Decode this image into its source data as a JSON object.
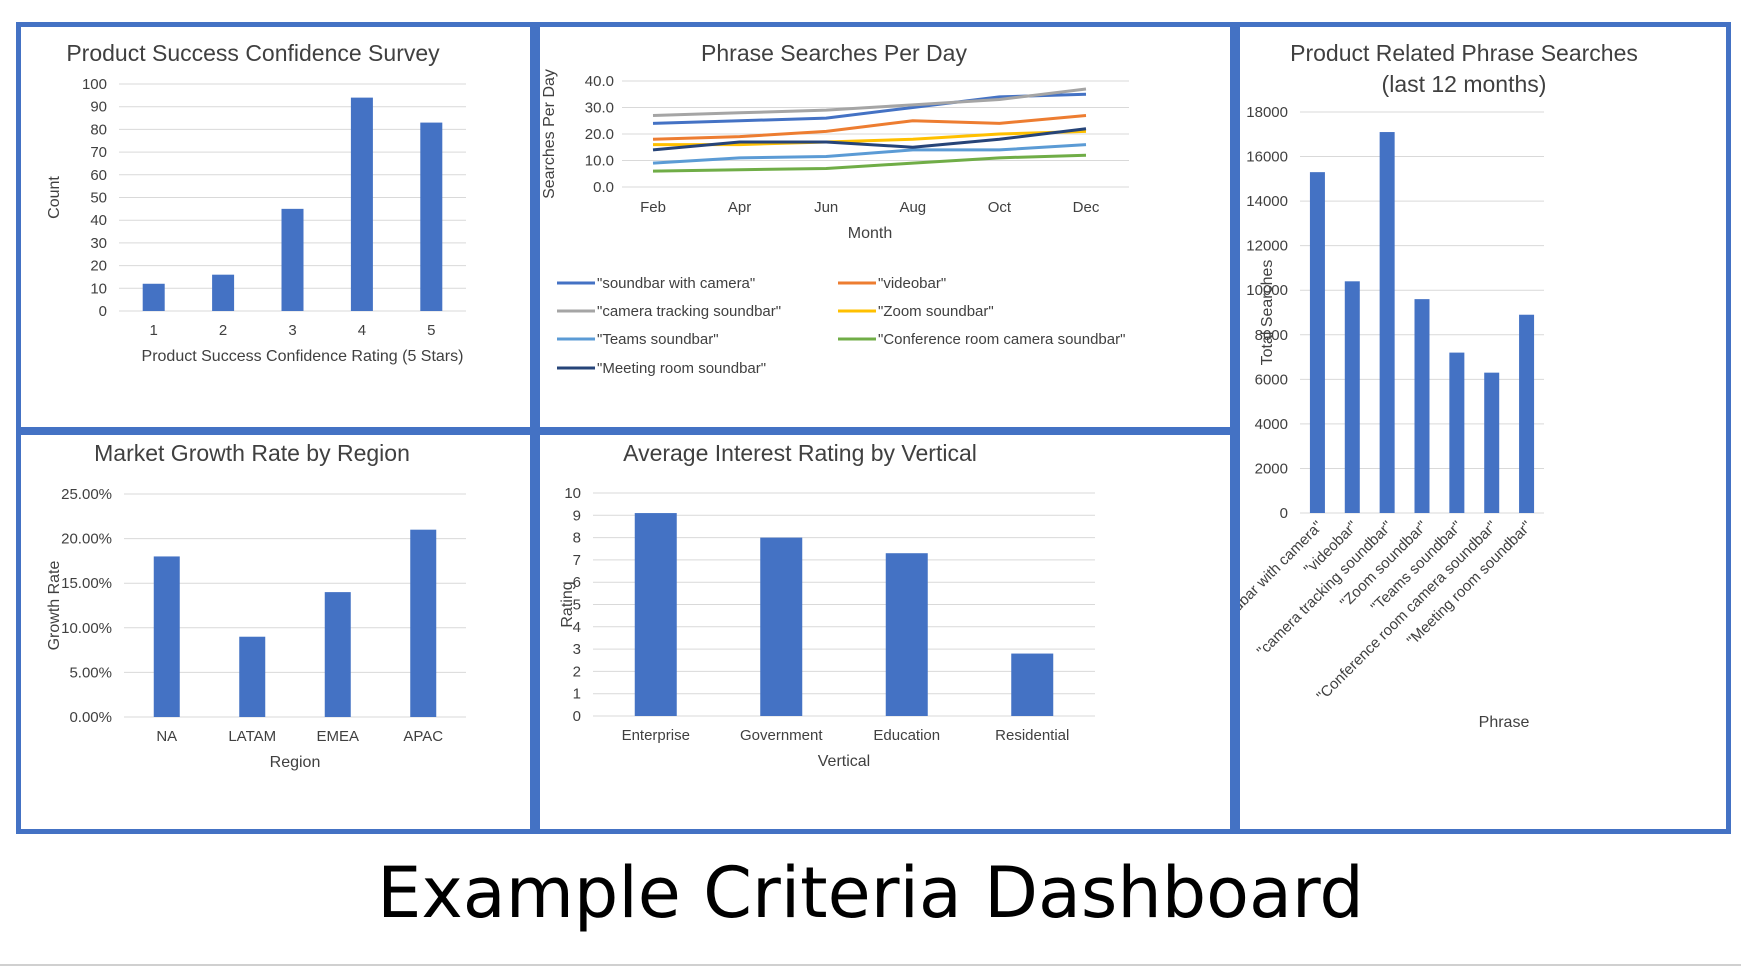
{
  "page": {
    "title": "Example Criteria Dashboard"
  },
  "chart_data": [
    {
      "id": "c1",
      "type": "bar",
      "title": "Product Success Confidence Survey",
      "categories": [
        "1",
        "2",
        "3",
        "4",
        "5"
      ],
      "values": [
        12,
        16,
        45,
        94,
        83
      ],
      "xlabel": "Product Success Confidence Rating (5 Stars)",
      "ylabel": "Count",
      "ylim": [
        0,
        100
      ],
      "yticks": [
        "0",
        "10",
        "20",
        "30",
        "40",
        "50",
        "60",
        "70",
        "80",
        "90",
        "100"
      ],
      "grid": true,
      "color": "#4472c4"
    },
    {
      "id": "c2",
      "type": "line",
      "title": "Phrase Searches Per Day",
      "x": [
        "Feb",
        "Apr",
        "Jun",
        "Aug",
        "Oct",
        "Dec"
      ],
      "xlabel": "Month",
      "ylabel": "Searches Per Day",
      "ylim": [
        0,
        40
      ],
      "yticks": [
        "0.0",
        "10.0",
        "20.0",
        "30.0",
        "40.0"
      ],
      "grid": true,
      "legend": "bottom",
      "series": [
        {
          "name": "\"soundbar with camera\"",
          "color": "#4472c4",
          "values": [
            24,
            25,
            26,
            30,
            34,
            35
          ]
        },
        {
          "name": "\"videobar\"",
          "color": "#ed7d31",
          "values": [
            18,
            19,
            21,
            25,
            24,
            27
          ]
        },
        {
          "name": "\"camera tracking soundbar\"",
          "color": "#a5a5a5",
          "values": [
            27,
            28,
            29,
            31,
            33,
            37
          ]
        },
        {
          "name": "\"Zoom soundbar\"",
          "color": "#ffc000",
          "values": [
            16,
            16,
            17,
            18,
            20,
            21
          ]
        },
        {
          "name": "\"Teams soundbar\"",
          "color": "#5b9bd5",
          "values": [
            9,
            11,
            11.5,
            14,
            14,
            16
          ]
        },
        {
          "name": "\"Conference room camera soundbar\"",
          "color": "#70ad47",
          "values": [
            6,
            6.5,
            7,
            9,
            11,
            12
          ]
        },
        {
          "name": "\"Meeting room soundbar\"",
          "color": "#264478",
          "values": [
            14,
            17,
            17,
            15,
            18,
            22
          ]
        }
      ]
    },
    {
      "id": "c3",
      "type": "bar",
      "title": "Product Related Phrase Searches",
      "subtitle": "(last 12 months)",
      "categories": [
        "\"soundbar with camera\"",
        "\"videobar\"",
        "\"camera tracking soundbar\"",
        "\"Zoom soundbar\"",
        "\"Teams soundbar\"",
        "\"Conference room camera soundbar\"",
        "\"Meeting room soundbar\""
      ],
      "values": [
        15300,
        10400,
        17100,
        9600,
        7200,
        6300,
        8900
      ],
      "xlabel": "Phrase",
      "ylabel": "Total Searches",
      "ylim": [
        0,
        18000
      ],
      "yticks": [
        "0",
        "2000",
        "4000",
        "6000",
        "8000",
        "10000",
        "12000",
        "14000",
        "16000",
        "18000"
      ],
      "grid": true,
      "color": "#4472c4"
    },
    {
      "id": "c4",
      "type": "bar",
      "title": "Market Growth Rate by Region",
      "categories": [
        "NA",
        "LATAM",
        "EMEA",
        "APAC"
      ],
      "values": [
        0.18,
        0.09,
        0.14,
        0.21
      ],
      "xlabel": "Region",
      "ylabel": "Growth Rate",
      "ylim": [
        0,
        0.25
      ],
      "yticks": [
        "0.00%",
        "5.00%",
        "10.00%",
        "15.00%",
        "20.00%",
        "25.00%"
      ],
      "grid": true,
      "color": "#4472c4"
    },
    {
      "id": "c5",
      "type": "bar",
      "title": "Average Interest Rating by Vertical",
      "categories": [
        "Enterprise",
        "Government",
        "Education",
        "Residential"
      ],
      "values": [
        9.1,
        8.0,
        7.3,
        2.8
      ],
      "xlabel": "Vertical",
      "ylabel": "Rating",
      "ylim": [
        0,
        10
      ],
      "yticks": [
        "0",
        "1",
        "2",
        "3",
        "4",
        "5",
        "6",
        "7",
        "8",
        "9",
        "10"
      ],
      "grid": true,
      "color": "#4472c4"
    }
  ]
}
